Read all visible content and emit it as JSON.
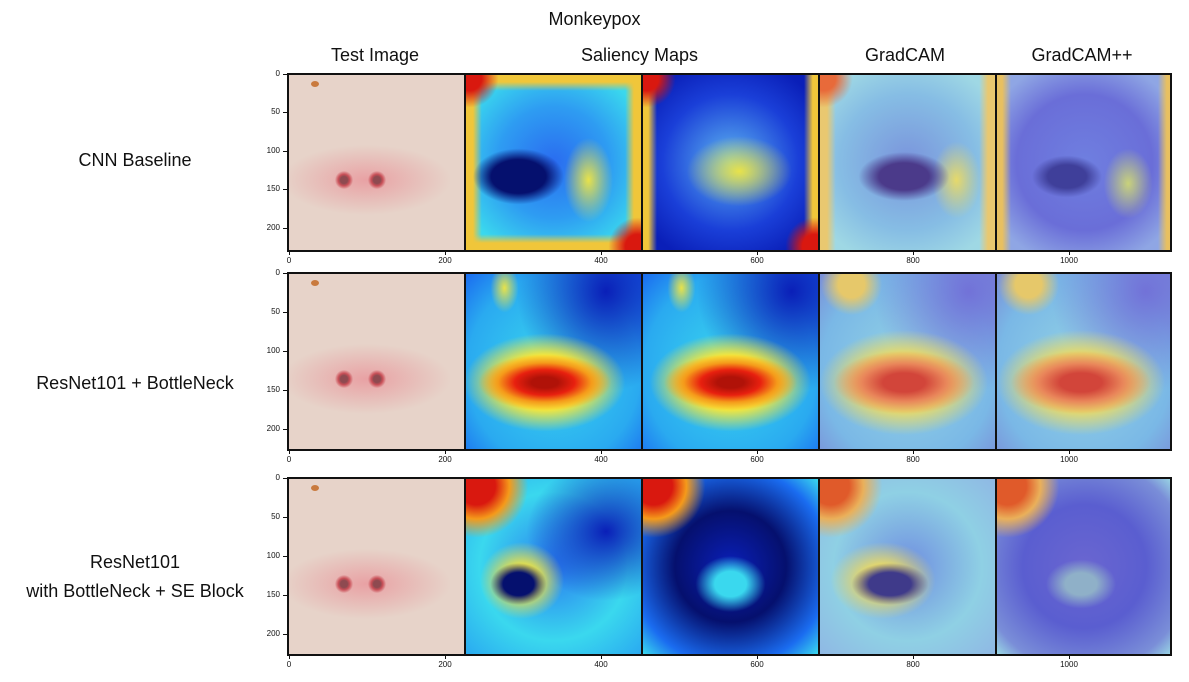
{
  "figure": {
    "title": "Monkeypox",
    "columns": [
      "Test Image",
      "Saliency Maps",
      "GradCAM",
      "GradCAM++"
    ],
    "rows": [
      {
        "label_lines": [
          "CNN Baseline"
        ]
      },
      {
        "label_lines": [
          "ResNet101 + BottleNeck"
        ]
      },
      {
        "label_lines": [
          "ResNet101",
          "with BottleNeck + SE Block"
        ]
      }
    ],
    "y_ticks": [
      "0",
      "50",
      "100",
      "150",
      "200"
    ],
    "x_ticks": [
      "0",
      "200",
      "400",
      "600",
      "800",
      "1000"
    ]
  },
  "colors": {
    "skin": "#e7d3c9",
    "lesion": "#c94f57",
    "jet_blue": "#0a1fb8",
    "jet_cyan": "#3ad8ee",
    "jet_yellow": "#f6e63a",
    "jet_red": "#d9180f"
  }
}
